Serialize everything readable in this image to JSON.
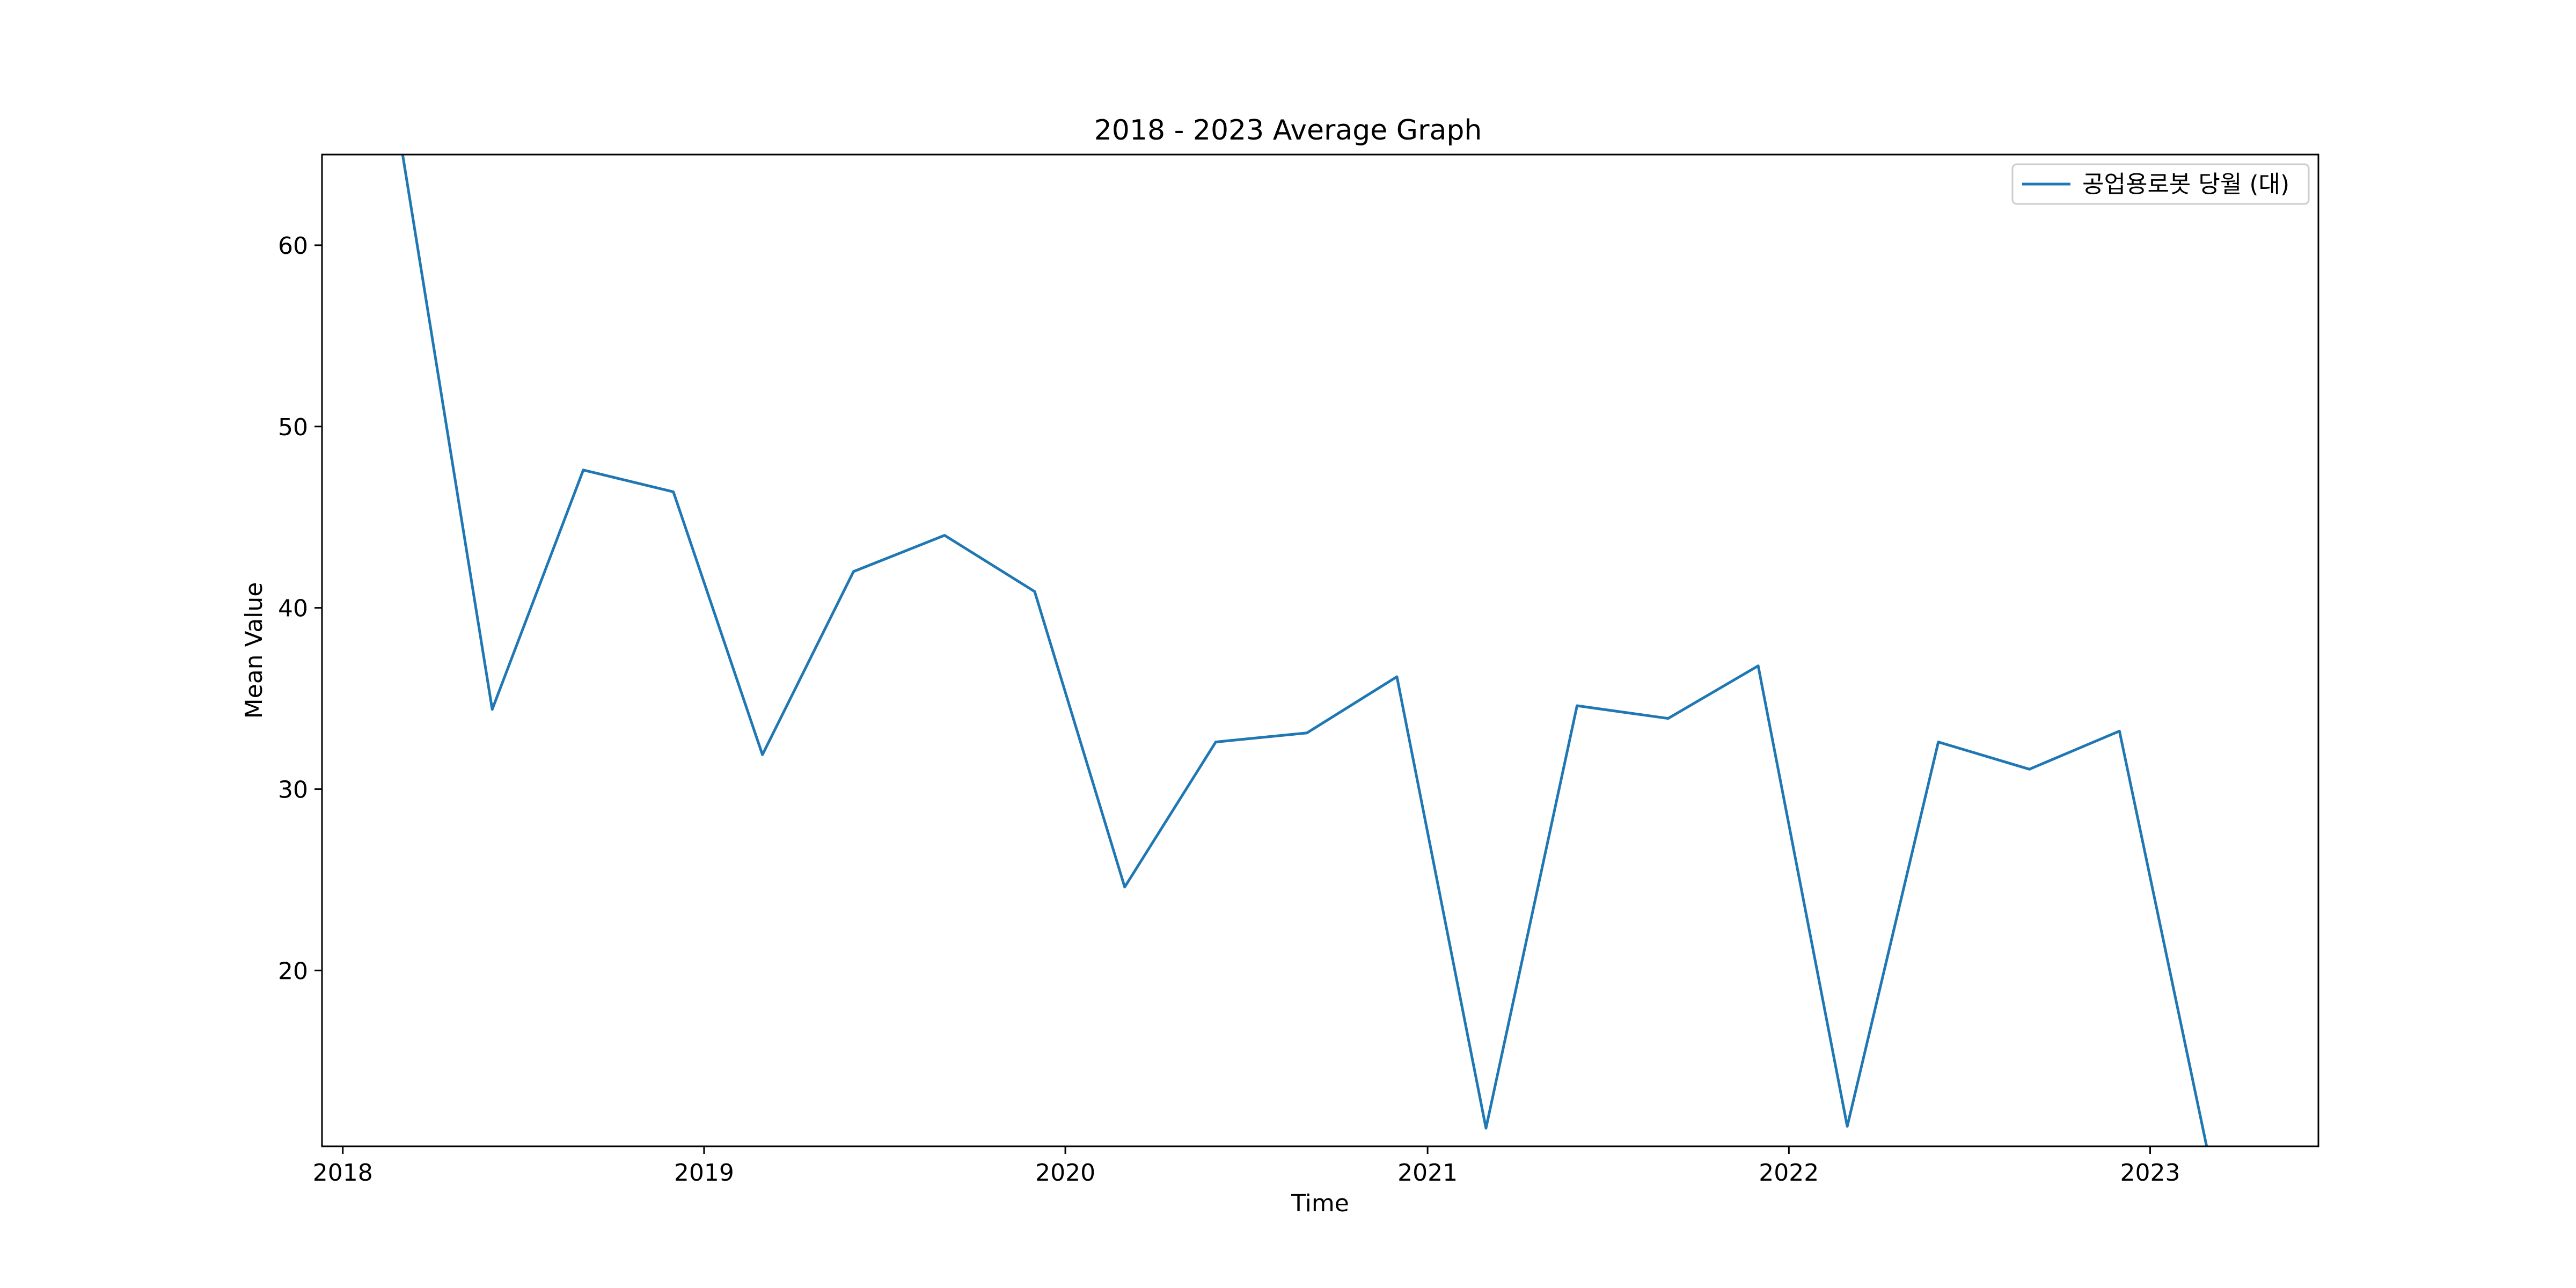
{
  "chart_data": {
    "type": "line",
    "title": "2018 - 2023 Average Graph",
    "xlabel": "Time",
    "ylabel": "Mean Value",
    "x": [
      "2018-03",
      "2018-06",
      "2018-09",
      "2018-12",
      "2019-03",
      "2019-06",
      "2019-09",
      "2019-12",
      "2020-03",
      "2020-06",
      "2020-09",
      "2020-12",
      "2021-03",
      "2021-06",
      "2021-09",
      "2021-12",
      "2022-03",
      "2022-06",
      "2022-09",
      "2022-12",
      "2023-03"
    ],
    "series": [
      {
        "name": "공업용로봇 당월 (대)",
        "color": "#1f77b4",
        "values": [
          65.5,
          34.4,
          47.6,
          46.4,
          31.9,
          42.0,
          44.0,
          40.9,
          24.6,
          32.6,
          33.1,
          36.2,
          11.3,
          34.6,
          33.9,
          36.8,
          11.4,
          32.6,
          31.1,
          33.2,
          9.8
        ]
      }
    ],
    "xticks": [
      "2018",
      "2019",
      "2020",
      "2021",
      "2022",
      "2023"
    ],
    "yticks": [
      20,
      30,
      40,
      50,
      60
    ],
    "xlim": [
      "2017-12-11",
      "2023-06-20"
    ],
    "ylim": [
      10.3,
      65.0
    ],
    "grid": false,
    "legend": "top-right"
  }
}
